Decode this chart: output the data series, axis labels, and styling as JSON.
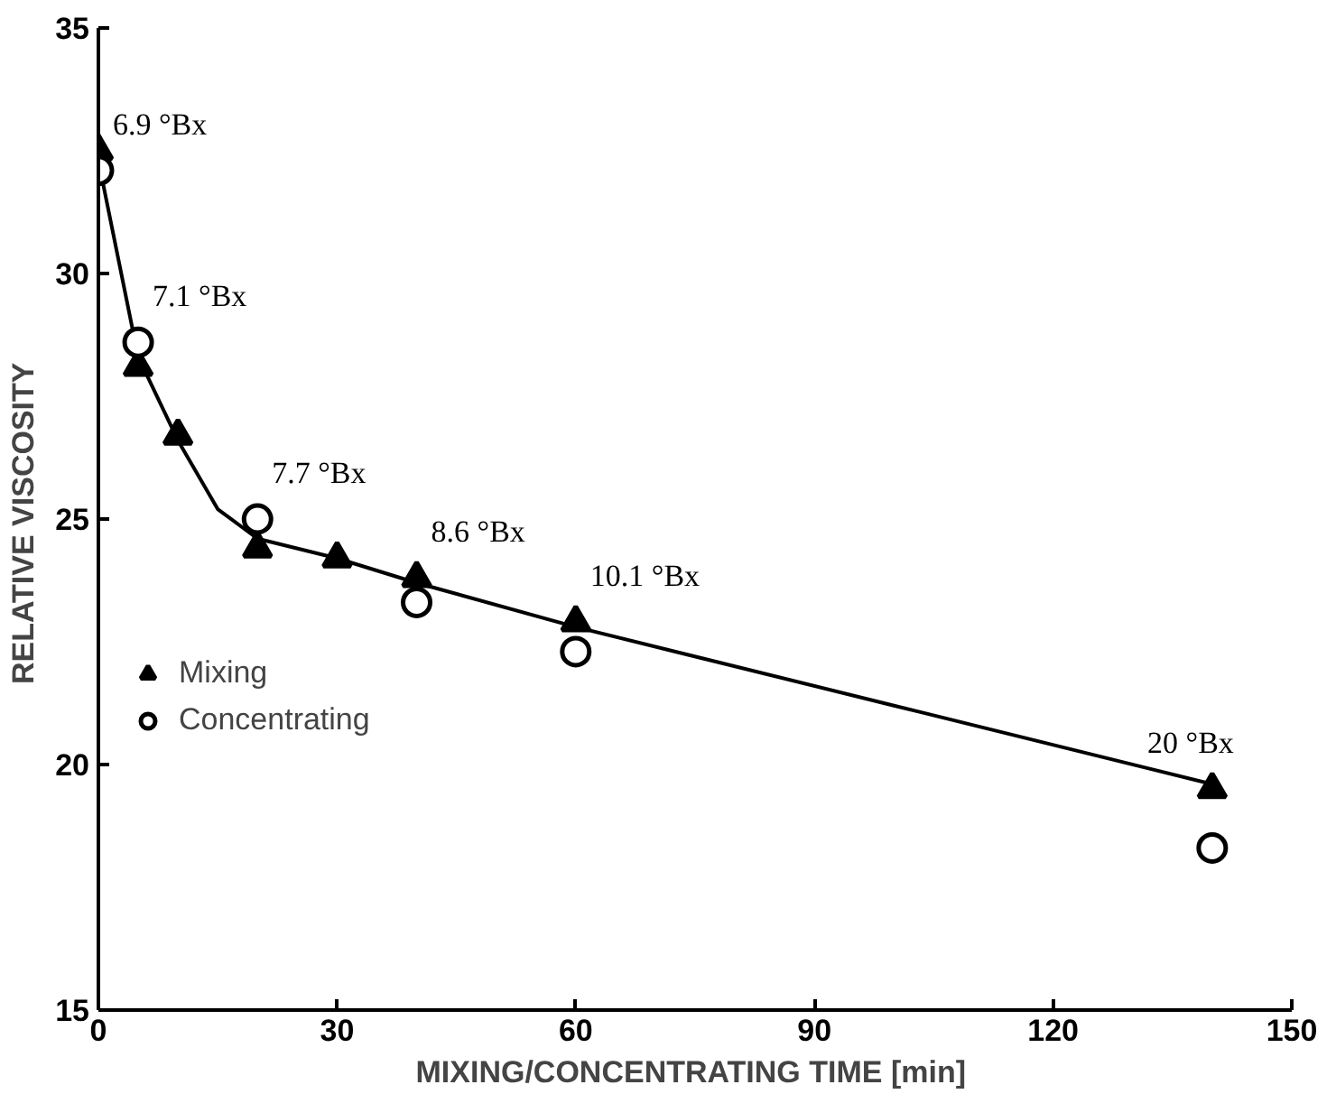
{
  "chart_data": {
    "type": "scatter",
    "xlabel": "MIXING/CONCENTRATING TIME  [min]",
    "ylabel": "RELATIVE  VISCOSITY",
    "xlim": [
      0,
      150
    ],
    "ylim": [
      15,
      35
    ],
    "xticks": [
      0,
      30,
      60,
      90,
      120,
      150
    ],
    "yticks": [
      15,
      20,
      25,
      30,
      35
    ],
    "grid": false,
    "legend": "left",
    "series": [
      {
        "type": "line",
        "color": "#000000",
        "marker": "none",
        "x": [
          0,
          5,
          10,
          15,
          20,
          30,
          40,
          60,
          100,
          140
        ],
        "values": [
          32.3,
          28.3,
          26.6,
          25.2,
          24.6,
          24.2,
          23.7,
          22.8,
          21.2,
          19.6
        ]
      },
      {
        "name": "Mixing",
        "color": "#000000",
        "marker": "triangle",
        "x": [
          0,
          5,
          10,
          20,
          30,
          40,
          60,
          140
        ],
        "values": [
          32.5,
          28.1,
          26.7,
          24.4,
          24.2,
          23.8,
          22.9,
          19.5
        ]
      },
      {
        "name": "Concentrating",
        "color": "#000000",
        "marker": "circle",
        "x": [
          0,
          5,
          20,
          40,
          60,
          140
        ],
        "values": [
          32.1,
          28.6,
          25.0,
          23.3,
          22.3,
          18.3
        ]
      }
    ],
    "annotations": [
      {
        "text": "6.9 °Bx",
        "x": 0,
        "y": 32.1
      },
      {
        "text": "7.1 °Bx",
        "x": 5,
        "y": 28.6
      },
      {
        "text": "7.7 °Bx",
        "x": 20,
        "y": 25.0
      },
      {
        "text": "8.6 °Bx",
        "x": 40,
        "y": 23.8
      },
      {
        "text": "10.1 °Bx",
        "x": 60,
        "y": 22.9
      },
      {
        "text": "20 °Bx",
        "x": 140,
        "y": 19.5
      }
    ]
  }
}
